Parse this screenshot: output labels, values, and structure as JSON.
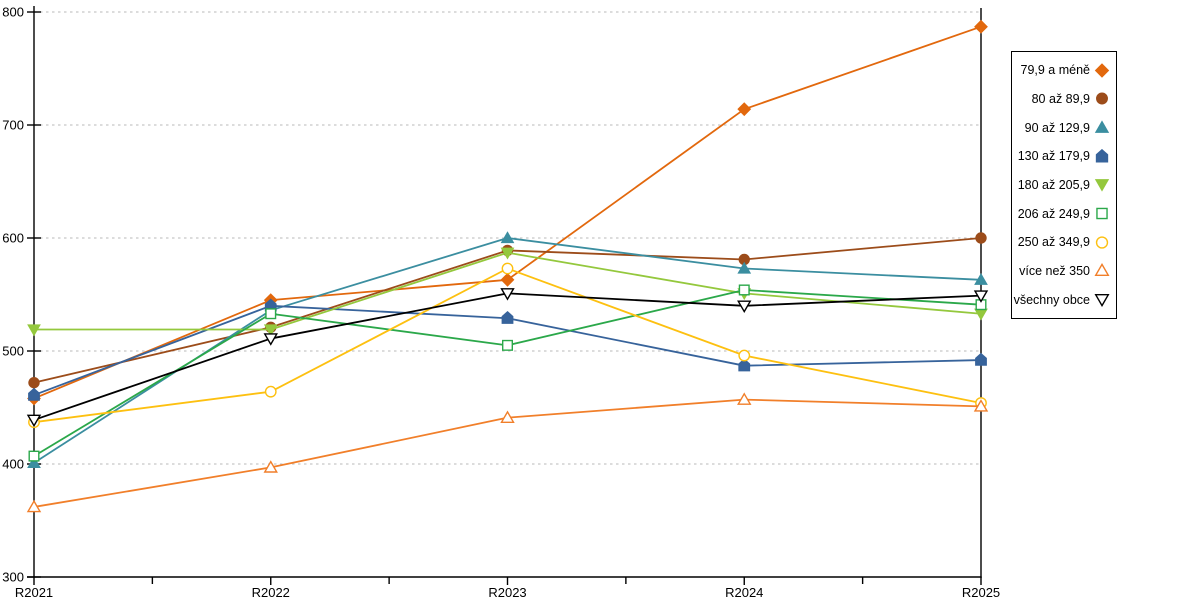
{
  "chart_data": {
    "type": "line",
    "title": "",
    "xlabel": "",
    "ylabel": "",
    "categories": [
      "R2021",
      "R2022",
      "R2023",
      "R2024",
      "R2025"
    ],
    "series": [
      {
        "name": "79,9 a méně",
        "color": "#e2680d",
        "marker": "diamond",
        "fill": "filled",
        "values": [
          458,
          545,
          563,
          714,
          787
        ]
      },
      {
        "name": "80 až 89,9",
        "color": "#9c4c1a",
        "marker": "circle",
        "fill": "filled",
        "values": [
          472,
          521,
          589,
          581,
          600
        ]
      },
      {
        "name": "90 až 129,9",
        "color": "#3b8ea0",
        "marker": "triangle-up",
        "fill": "filled",
        "values": [
          401,
          536,
          600,
          573,
          563
        ]
      },
      {
        "name": "130 až 179,9",
        "color": "#37639b",
        "marker": "pentagon",
        "fill": "filled",
        "values": [
          461,
          540,
          529,
          487,
          492
        ]
      },
      {
        "name": "180 až 205,9",
        "color": "#94c83d",
        "marker": "triangle-down",
        "fill": "filled",
        "values": [
          519,
          519,
          587,
          551,
          533
        ]
      },
      {
        "name": "206 až 249,9",
        "color": "#2ba84a",
        "marker": "square",
        "fill": "open",
        "values": [
          407,
          533,
          505,
          554,
          541
        ]
      },
      {
        "name": "250 až 349,9",
        "color": "#fdc010",
        "marker": "circle",
        "fill": "open",
        "values": [
          437,
          464,
          573,
          496,
          454
        ]
      },
      {
        "name": "více než 350",
        "color": "#f17f2a",
        "marker": "triangle-up",
        "fill": "open",
        "values": [
          362,
          397,
          441,
          457,
          451
        ]
      },
      {
        "name": "všechny obce",
        "color": "#000000",
        "marker": "triangle-down",
        "fill": "open",
        "values": [
          439,
          511,
          551,
          540,
          549
        ]
      }
    ],
    "ylim": [
      300,
      800
    ],
    "y_ticks": [
      300,
      400,
      500,
      600,
      700,
      800
    ],
    "grid": "horizontal-dashed",
    "grid_color": "#c6c6c6",
    "axis_color": "#000000",
    "legend_position": "right",
    "x_minor_ticks": true
  }
}
